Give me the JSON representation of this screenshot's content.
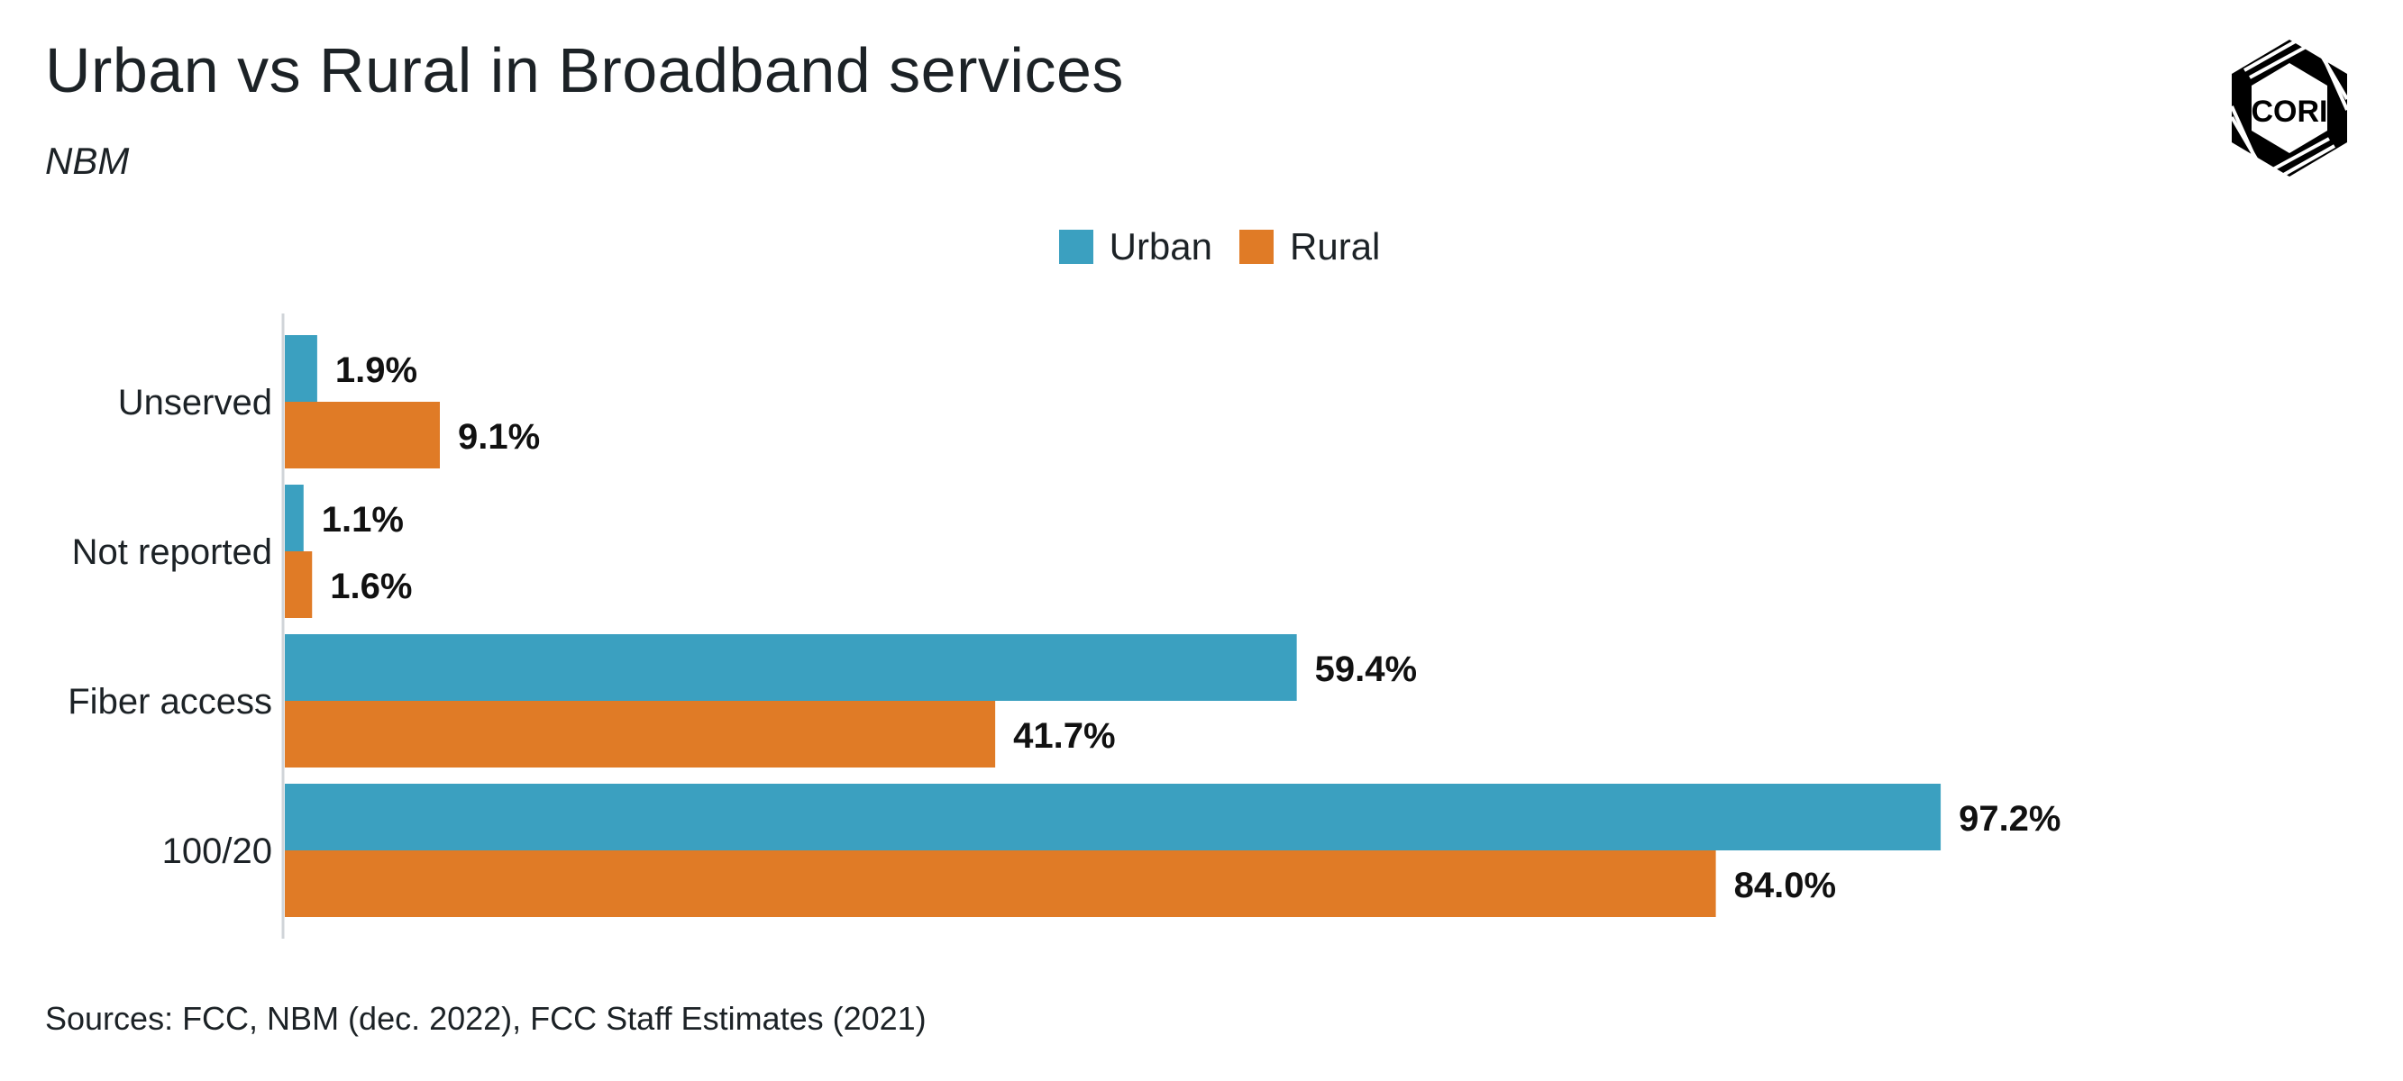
{
  "title": "Urban vs Rural in Broadband services",
  "subtitle": "NBM",
  "source": "Sources: FCC, NBM (dec. 2022), FCC Staff Estimates (2021)",
  "logo_text": "CORI",
  "colors": {
    "urban": "#3ba0c0",
    "rural": "#e07b26",
    "axis": "#d0d4d8",
    "text": "#1c2226"
  },
  "chart_data": {
    "type": "bar",
    "orientation": "horizontal",
    "title": "Urban vs Rural in Broadband services",
    "subtitle": "NBM",
    "categories": [
      "Unserved",
      "Not reported",
      "Fiber access",
      "100/20"
    ],
    "series": [
      {
        "name": "Urban",
        "values": [
          1.9,
          1.1,
          59.4,
          97.2
        ],
        "labels": [
          "1.9%",
          "1.1%",
          "59.4%",
          "97.2%"
        ]
      },
      {
        "name": "Rural",
        "values": [
          9.1,
          1.6,
          41.7,
          84.0
        ],
        "labels": [
          "9.1%",
          "1.6%",
          "41.7%",
          "84.0%"
        ]
      }
    ],
    "unit": "%",
    "xlim": [
      0,
      100
    ],
    "grid": false,
    "legend_position": "top-center"
  }
}
